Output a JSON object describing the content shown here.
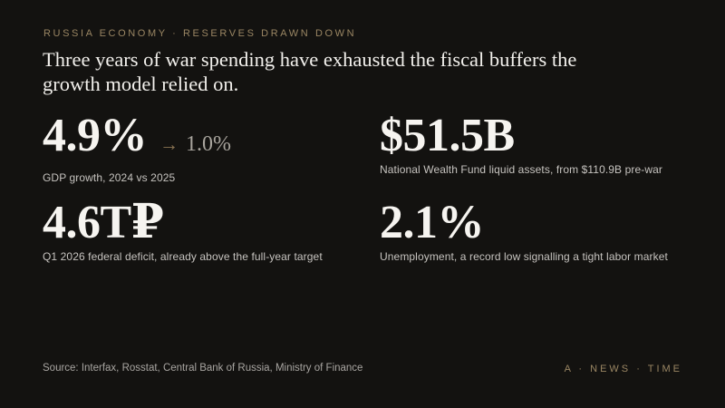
{
  "meta": {
    "background_color": "#131210",
    "accent_gold": "#9a8663",
    "arrow_gold": "#8a7352",
    "headline_color": "#f2f0ec",
    "stat_color": "#f6f4f0",
    "caption_color": "#c6c3bf"
  },
  "kicker": {
    "text": "RUSSIA ECONOMY · RESERVES DRAWN DOWN"
  },
  "headline": {
    "line1": "Three years of war spending have exhausted the fiscal buffers the",
    "line2": "growth model relied on."
  },
  "stats": [
    {
      "value": "4.9%",
      "arrow": "→",
      "compare": "1.0%",
      "caption": "GDP growth, 2024 vs 2025"
    },
    {
      "value": "$51.5B",
      "caption": "National Wealth Fund liquid assets, from $110.9B pre-war"
    },
    {
      "value": "4.6T₽",
      "caption": "Q1 2026 federal deficit, already above the full-year target"
    },
    {
      "value": "2.1%",
      "caption": "Unemployment, a record low signalling a tight labor market"
    }
  ],
  "footer": {
    "source": "Source: Interfax, Rosstat, Central Bank of Russia, Ministry of Finance",
    "brand": "A · NEWS · TIME"
  },
  "chart_data": {
    "type": "table",
    "kicker": "RUSSIA ECONOMY · RESERVES DRAWN DOWN",
    "title": "Three years of war spending have exhausted the fiscal buffers the growth model relied on.",
    "stats": [
      {
        "metric": "GDP growth",
        "period": "2024 vs 2025",
        "value_2024_pct": 4.9,
        "value_2025_pct": 1.0
      },
      {
        "metric": "National Wealth Fund liquid assets",
        "value_usd_billion": 51.5,
        "pre_war_usd_billion": 110.9
      },
      {
        "metric": "Federal deficit",
        "period": "Q1 2026",
        "value_rub_trillion": 4.6,
        "note": "already above the full-year target"
      },
      {
        "metric": "Unemployment",
        "value_pct": 2.1,
        "note": "a record low signalling a tight labor market"
      }
    ],
    "source": "Source: Interfax, Rosstat, Central Bank of Russia, Ministry of Finance"
  }
}
